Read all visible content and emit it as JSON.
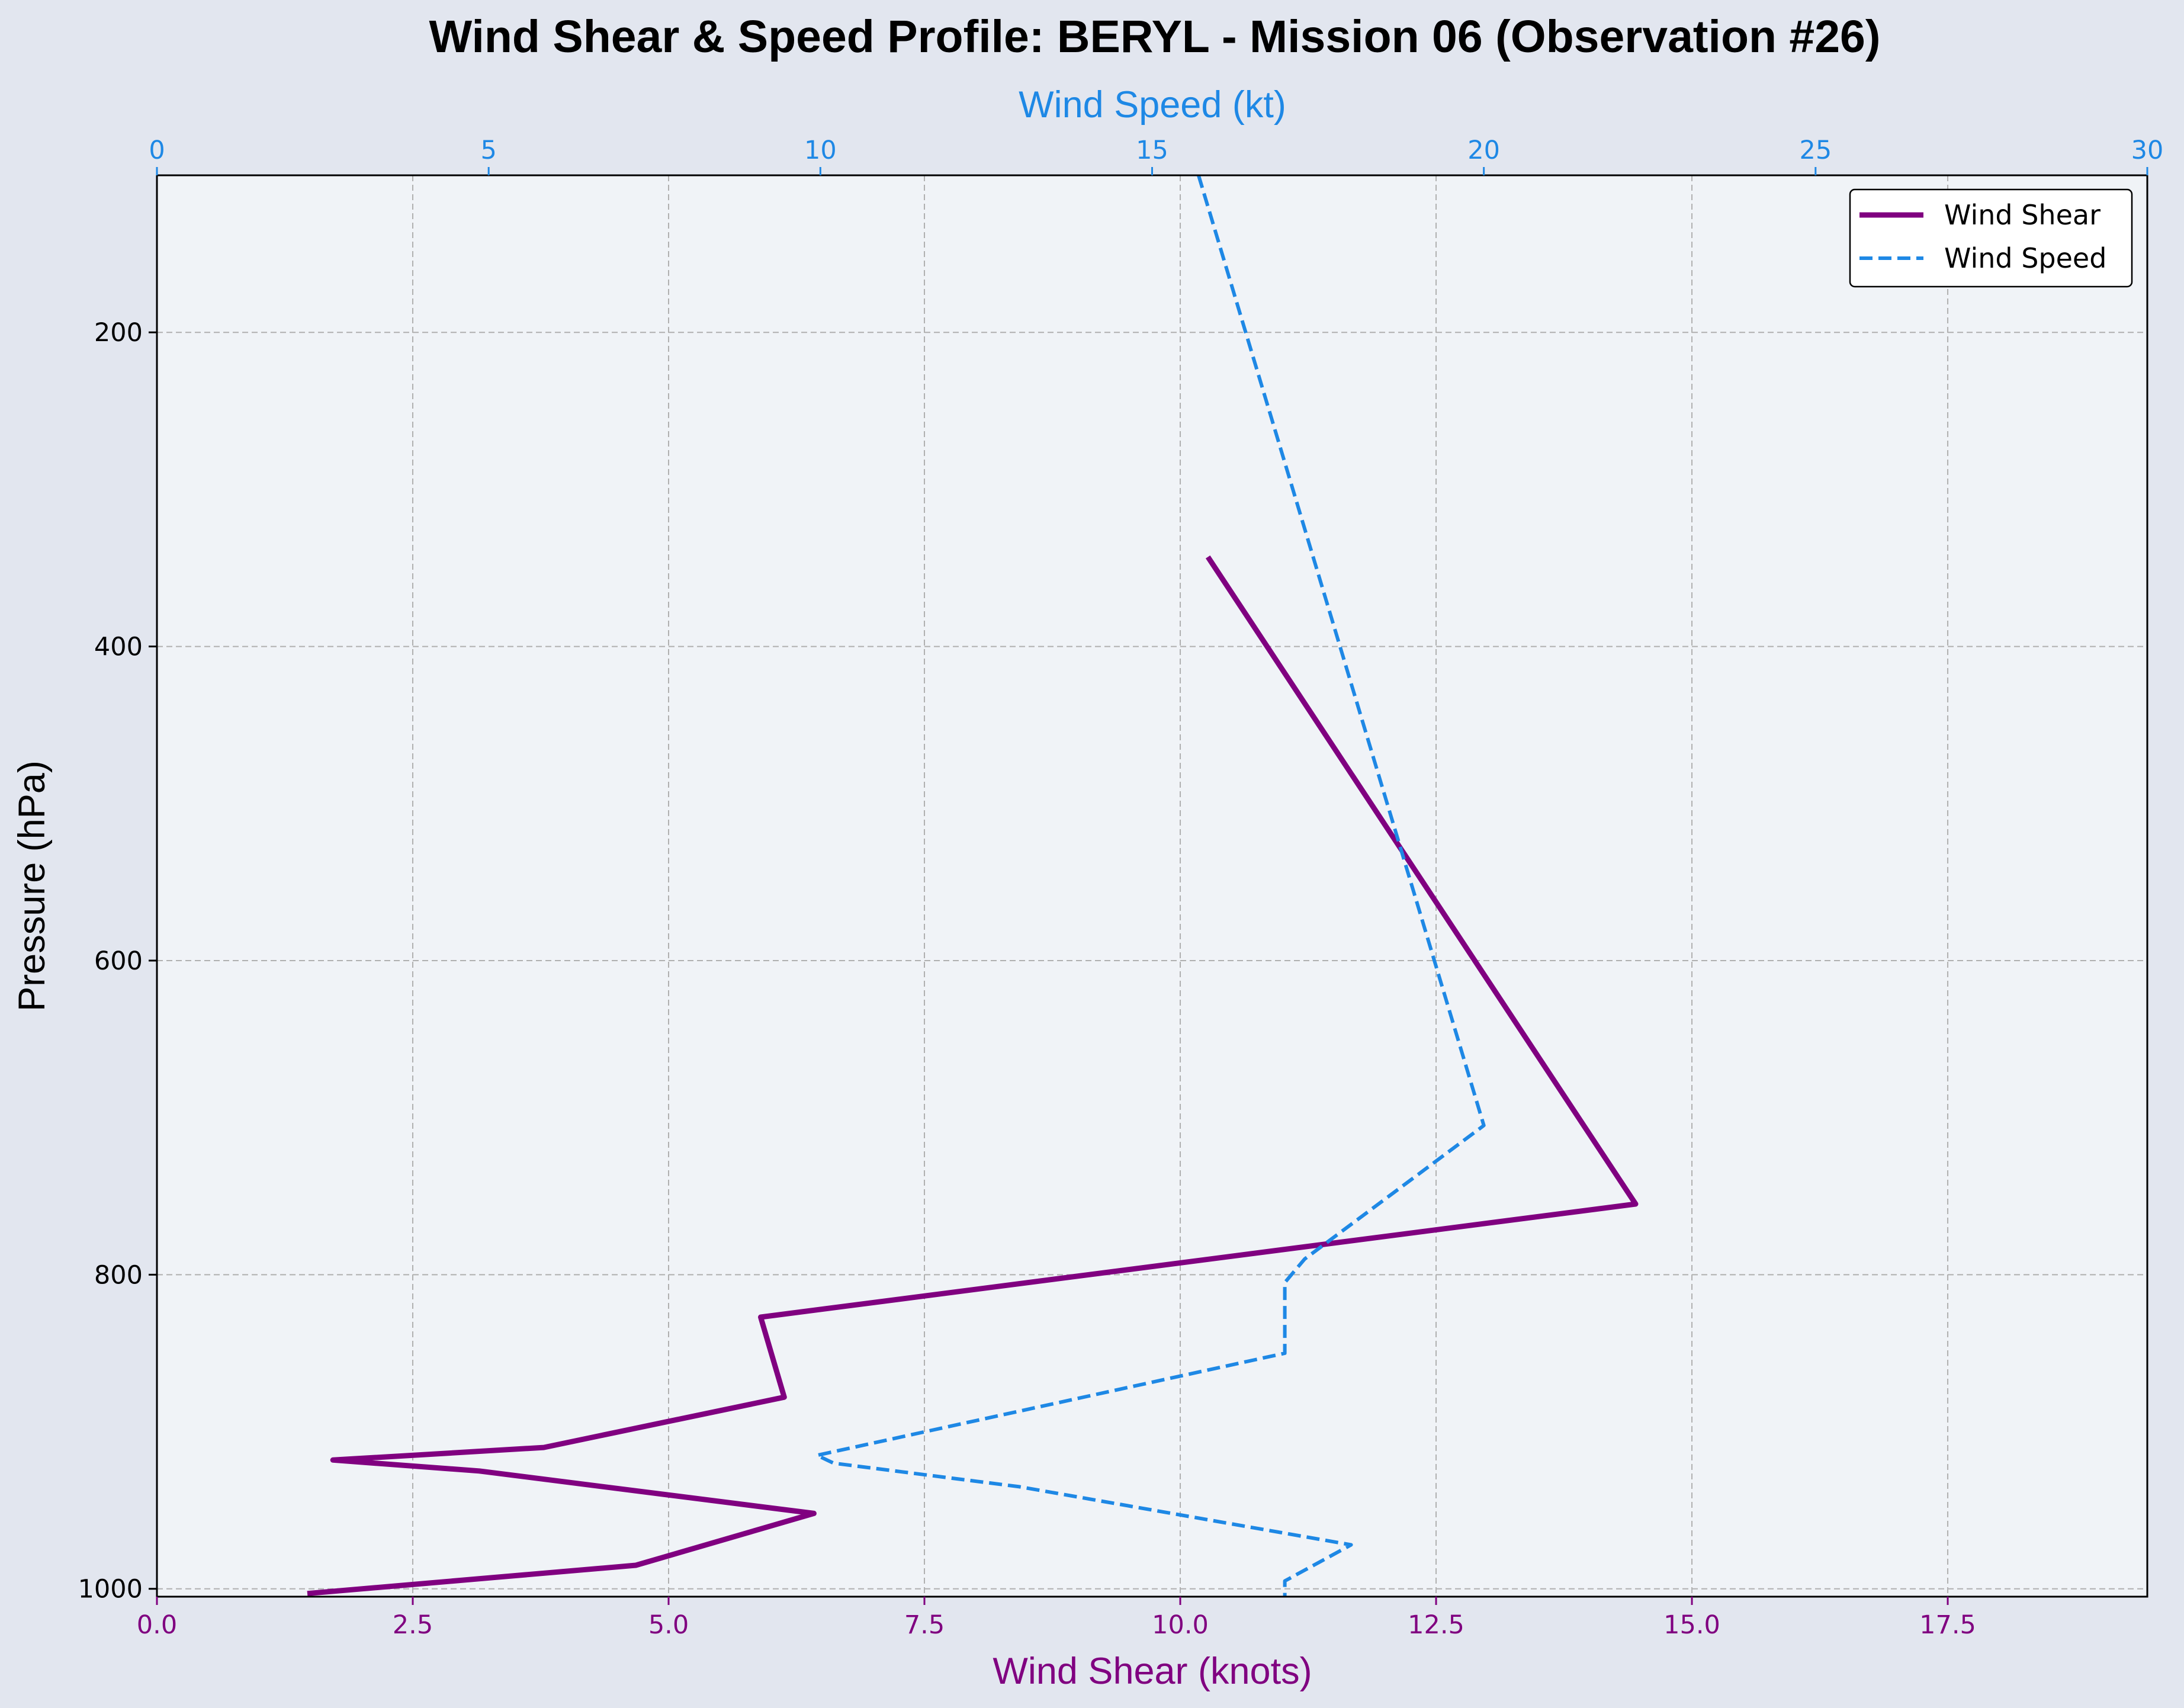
{
  "chart_data": {
    "type": "line",
    "title": "Wind Shear & Speed Profile: BERYL - Mission 06 (Observation #26)",
    "y_axis": {
      "label": "Pressure (hPa)",
      "range": [
        100,
        1005
      ],
      "inverted": true,
      "ticks": [
        200,
        400,
        600,
        800,
        1000
      ]
    },
    "x_axis_bottom": {
      "label": "Wind Shear (knots)",
      "range": [
        0,
        19.45
      ],
      "ticks": [
        "0.0",
        "2.5",
        "5.0",
        "7.5",
        "10.0",
        "12.5",
        "15.0",
        "17.5"
      ],
      "color": "#800080"
    },
    "x_axis_top": {
      "label": "Wind Speed (kt)",
      "range": [
        0,
        30
      ],
      "ticks": [
        "0",
        "5",
        "10",
        "15",
        "20",
        "25",
        "30"
      ],
      "color": "#1e88e5"
    },
    "grid": true,
    "legend": {
      "position": "top-right",
      "entries": [
        "Wind Shear",
        "Wind Speed"
      ]
    },
    "series": [
      {
        "name": "Wind Shear",
        "axis": "bottom",
        "color": "#800080",
        "style": "solid",
        "points": [
          {
            "x": 10.27,
            "y": 343
          },
          {
            "x": 14.45,
            "y": 755
          },
          {
            "x": 5.9,
            "y": 827
          },
          {
            "x": 6.13,
            "y": 878
          },
          {
            "x": 3.78,
            "y": 910
          },
          {
            "x": 1.72,
            "y": 918
          },
          {
            "x": 3.15,
            "y": 925
          },
          {
            "x": 6.42,
            "y": 952
          },
          {
            "x": 4.68,
            "y": 985
          },
          {
            "x": 1.47,
            "y": 1003
          }
        ]
      },
      {
        "name": "Wind Speed",
        "axis": "top",
        "color": "#1e88e5",
        "style": "dashed",
        "points": [
          {
            "x": 15.7,
            "y": 100
          },
          {
            "x": 20.0,
            "y": 705
          },
          {
            "x": 17.3,
            "y": 790
          },
          {
            "x": 17.0,
            "y": 805
          },
          {
            "x": 17.0,
            "y": 850
          },
          {
            "x": 9.95,
            "y": 915
          },
          {
            "x": 10.2,
            "y": 920
          },
          {
            "x": 13.0,
            "y": 935
          },
          {
            "x": 18.0,
            "y": 972
          },
          {
            "x": 17.0,
            "y": 995
          },
          {
            "x": 17.0,
            "y": 1005
          }
        ]
      }
    ]
  }
}
